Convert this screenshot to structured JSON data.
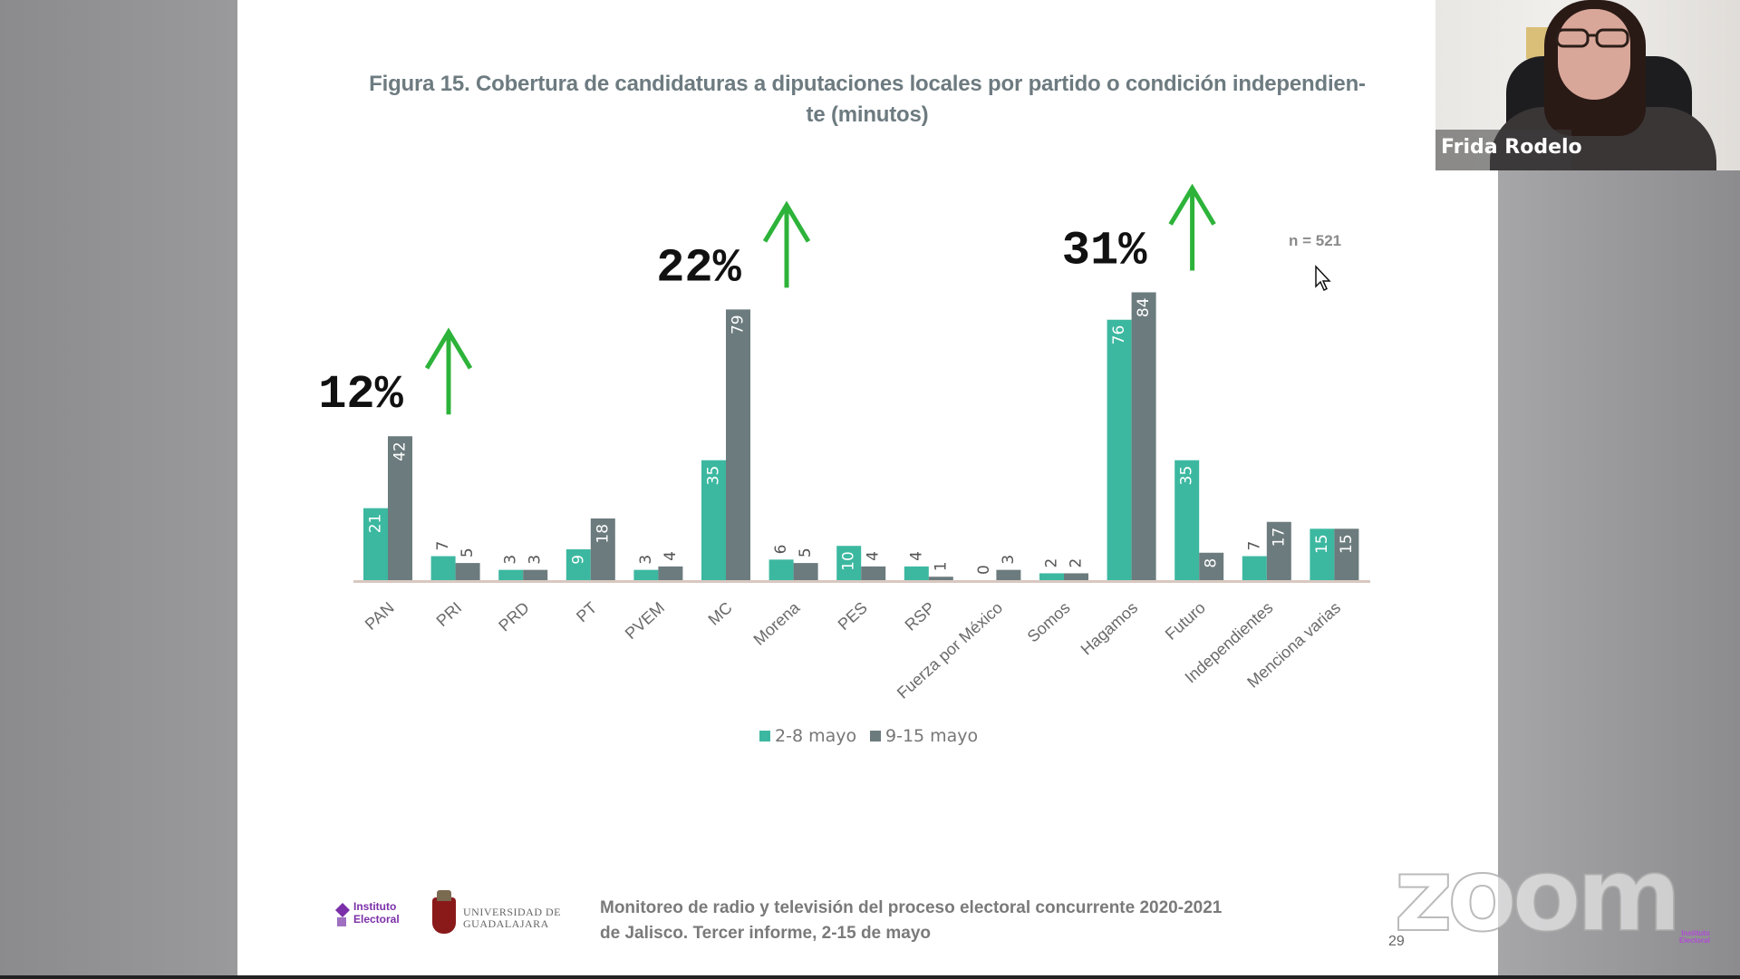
{
  "slide": {
    "title_line1": "Figura 15. Cobertura de candidaturas a diputaciones locales por partido o condición independien-",
    "title_line2": "te (minutos)",
    "n_label": "n = 521",
    "footer_line1": "Monitoreo de radio y televisión del proceso electoral concurrente 2020-2021",
    "footer_line2": "de Jalisco. Tercer informe, 2-15 de mayo",
    "page_number": "29",
    "logo_iepc_line1": "Instituto",
    "logo_iepc_line2": "Electoral",
    "logo_udg_line1": "UNIVERSIDAD DE",
    "logo_udg_line2": "GUADALAJARA"
  },
  "video": {
    "participant_name": "Frida Rodelo"
  },
  "watermark": {
    "text": "zoom"
  },
  "colors": {
    "series1": "#3cb8a0",
    "series2": "#6c7b7e",
    "annotation_arrow": "#2db33a",
    "title": "#6d7b80"
  },
  "chart_data": {
    "type": "bar",
    "title": "Figura 15. Cobertura de candidaturas a diputaciones locales por partido o condición independiente (minutos)",
    "xlabel": "",
    "ylabel": "",
    "ylim": [
      0,
      90
    ],
    "grid": false,
    "legend_position": "bottom",
    "categories": [
      "PAN",
      "PRI",
      "PRD",
      "PT",
      "PVEM",
      "MC",
      "Morena",
      "PES",
      "RSP",
      "Fuerza por México",
      "Somos",
      "Hagamos",
      "Futuro",
      "Independientes",
      "Menciona varias"
    ],
    "series": [
      {
        "name": "2-8 mayo",
        "values": [
          21,
          7,
          3,
          9,
          3,
          35,
          6,
          10,
          4,
          0,
          2,
          76,
          35,
          7,
          15
        ]
      },
      {
        "name": "9-15 mayo",
        "values": [
          42,
          5,
          3,
          18,
          4,
          79,
          5,
          4,
          1,
          3,
          2,
          84,
          8,
          17,
          15
        ]
      }
    ],
    "annotations": [
      {
        "category": "PAN",
        "text": "12%",
        "direction": "up"
      },
      {
        "category": "MC",
        "text": "22%",
        "direction": "up"
      },
      {
        "category": "Hagamos",
        "text": "31%",
        "direction": "up"
      }
    ],
    "note": "n = 521"
  }
}
